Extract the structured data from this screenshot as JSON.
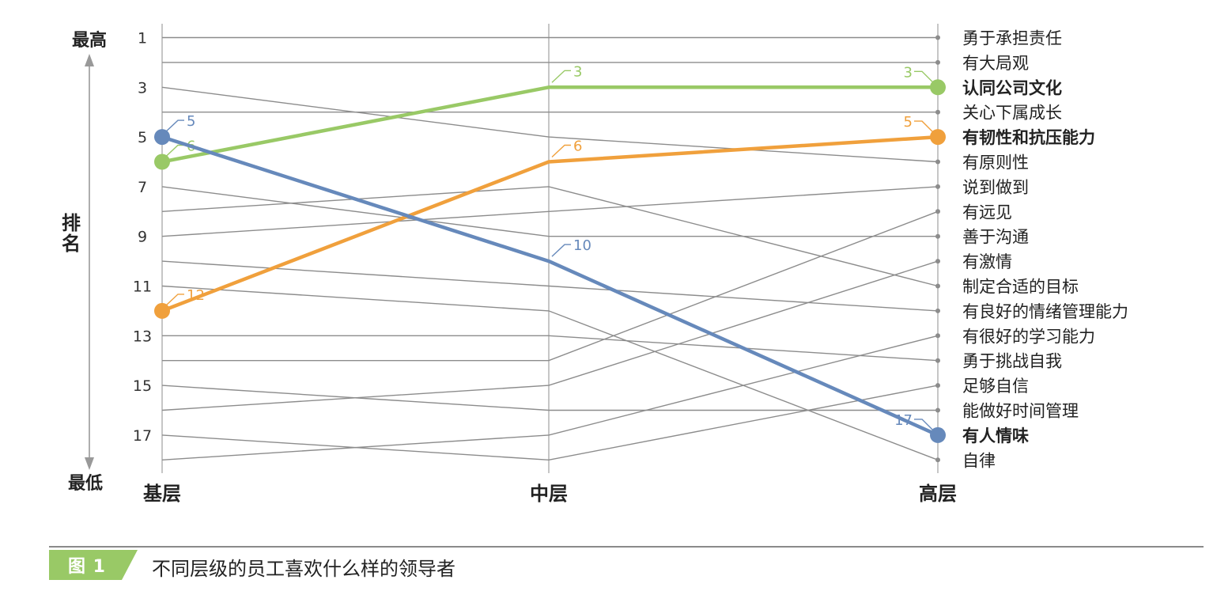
{
  "chart_data": {
    "type": "line",
    "subtype": "slope-chart",
    "categories": [
      "基层",
      "中层",
      "高层"
    ],
    "y_axis": {
      "label": "排名",
      "top_label": "最高",
      "bottom_label": "最低",
      "range": [
        1,
        18
      ],
      "ticks": [
        1,
        3,
        5,
        7,
        9,
        11,
        13,
        15,
        17
      ],
      "inverted": true
    },
    "series": [
      {
        "name": "勇于承担责任",
        "values": [
          1,
          1,
          1
        ]
      },
      {
        "name": "有大局观",
        "values": [
          2,
          2,
          2
        ]
      },
      {
        "name": "认同公司文化",
        "values": [
          6,
          3,
          3
        ],
        "highlight": true,
        "color": "#99c966"
      },
      {
        "name": "关心下属成长",
        "values": [
          4,
          4,
          4
        ]
      },
      {
        "name": "有韧性和抗压能力",
        "values": [
          12,
          6,
          5
        ],
        "highlight": true,
        "color": "#f0a03c"
      },
      {
        "name": "有原则性",
        "values": [
          3,
          5,
          6
        ]
      },
      {
        "name": "说到做到",
        "values": [
          9,
          8,
          7
        ]
      },
      {
        "name": "有远见",
        "values": [
          14,
          14,
          8
        ]
      },
      {
        "name": "善于沟通",
        "values": [
          7,
          9,
          9
        ]
      },
      {
        "name": "有激情",
        "values": [
          16,
          15,
          10
        ]
      },
      {
        "name": "制定合适的目标",
        "values": [
          8,
          7,
          11
        ]
      },
      {
        "name": "有良好的情绪管理能力",
        "values": [
          10,
          11,
          12
        ]
      },
      {
        "name": "有很好的学习能力",
        "values": [
          18,
          17,
          13
        ]
      },
      {
        "name": "勇于挑战自我",
        "values": [
          13,
          13,
          14
        ]
      },
      {
        "name": "足够自信",
        "values": [
          17,
          18,
          15
        ]
      },
      {
        "name": "能做好时间管理",
        "values": [
          15,
          16,
          16
        ]
      },
      {
        "name": "有人情味",
        "values": [
          5,
          10,
          17
        ],
        "highlight": true,
        "color": "#6689bb"
      },
      {
        "name": "自律",
        "values": [
          11,
          12,
          18
        ]
      }
    ]
  },
  "caption": {
    "tag": "图 1",
    "title": "不同层级的员工喜欢什么样的领导者"
  },
  "colors": {
    "grid_line": "#8c8c8c",
    "axis": "#9a9a9a",
    "tag_green": "#99c966"
  }
}
